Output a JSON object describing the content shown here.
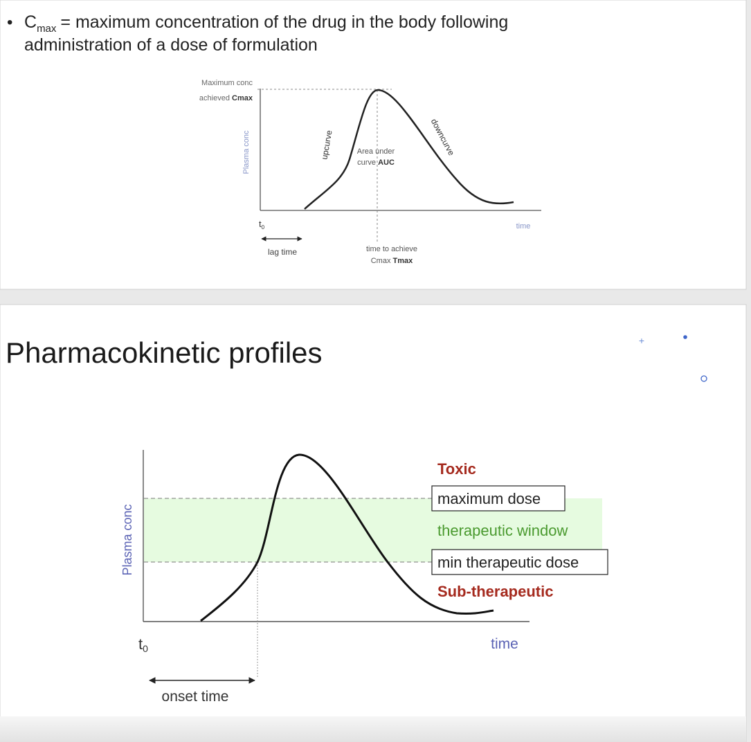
{
  "slide1": {
    "bullet": {
      "symbol": "C",
      "subscript": "max",
      "lines": [
        "= maximum concentration of the drug in the body following",
        "administration of a dose of formulation"
      ]
    },
    "diagram": {
      "cmax_label": {
        "line1": "Maximum conc",
        "line2": "achieved",
        "bold": "Cmax"
      },
      "y_axis": "Plasma conc",
      "upcurve": "upcurve",
      "downcurve": "downcurve",
      "auc": {
        "line1": "Area under",
        "line2": "curve",
        "bold": "AUC"
      },
      "t0": {
        "symbol": "t",
        "subscript": "0"
      },
      "lag_time": "lag time",
      "tmax": {
        "line1": "time to achieve",
        "line2": "Cmax",
        "bold": "Tmax"
      },
      "x_axis": "time"
    }
  },
  "slide2": {
    "title": "Pharmacokinetic profiles",
    "diagram": {
      "y_axis": "Plasma conc",
      "toxic": "Toxic",
      "maximum_dose": "maximum dose",
      "therapeutic_window": "therapeutic window",
      "min_dose": "min therapeutic dose",
      "sub_therapeutic": "Sub-therapeutic",
      "x_axis": "time",
      "t0": {
        "symbol": "t",
        "subscript": "0"
      },
      "onset_time": "onset time"
    }
  }
}
